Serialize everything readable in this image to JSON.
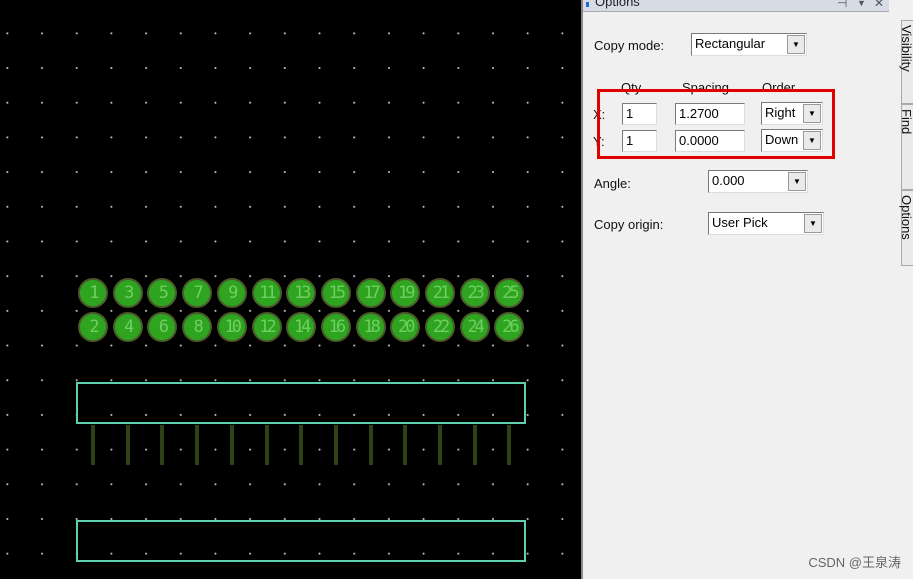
{
  "canvas": {
    "pads_top": [
      "1",
      "3",
      "5",
      "7",
      "9",
      "11",
      "13",
      "15",
      "17",
      "19",
      "21",
      "23",
      "25"
    ],
    "pads_bottom": [
      "2",
      "4",
      "6",
      "8",
      "10",
      "12",
      "14",
      "16",
      "18",
      "20",
      "22",
      "24",
      "26"
    ],
    "pad_color": "#2ea421",
    "outline_color": "#5fcfb0"
  },
  "panel": {
    "title": "Options",
    "copy_mode": {
      "label": "Copy mode:",
      "value": "Rectangular"
    },
    "headers": {
      "qty": "Qty",
      "spacing": "Spacing",
      "order": "Order"
    },
    "rows": [
      {
        "label": "X:",
        "qty": "1",
        "spacing": "1.2700",
        "order": "Right"
      },
      {
        "label": "Y:",
        "qty": "1",
        "spacing": "0.0000",
        "order": "Down"
      }
    ],
    "angle": {
      "label": "Angle:",
      "value": "0.000"
    },
    "copy_origin": {
      "label": "Copy origin:",
      "value": "User Pick"
    },
    "side_tabs": [
      "Visibility",
      "Find",
      "Options"
    ],
    "highlight_color": "#e00000"
  },
  "watermark": "CSDN @王泉涛"
}
